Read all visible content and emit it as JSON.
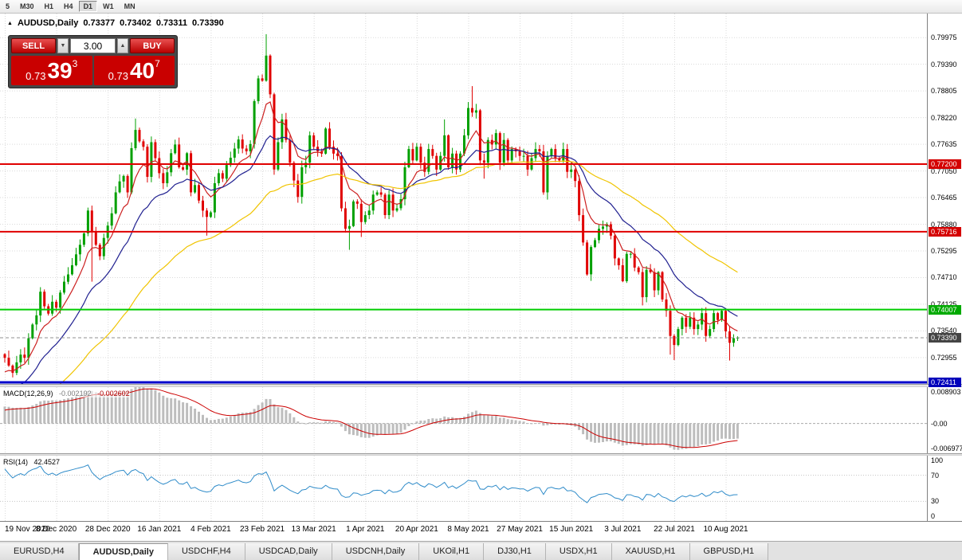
{
  "toolbar": {
    "timeframes": [
      {
        "label": "5"
      },
      {
        "label": "M30"
      },
      {
        "label": "H1"
      },
      {
        "label": "H4"
      },
      {
        "label": "D1",
        "active": true
      },
      {
        "label": "W1"
      },
      {
        "label": "MN"
      }
    ]
  },
  "chart_header": {
    "collapse_icon": "▲",
    "symbol": "AUDUSD,Daily",
    "open": "0.73377",
    "high": "0.73402",
    "low": "0.73311",
    "close": "0.73390"
  },
  "trade_panel": {
    "sell_label": "SELL",
    "buy_label": "BUY",
    "volume": "3.00",
    "volume_down_icon": "▼",
    "volume_up_icon": "▲",
    "sell_price": {
      "prefix": "0.73",
      "big": "39",
      "sup": "3"
    },
    "buy_price": {
      "prefix": "0.73",
      "big": "40",
      "sup": "7"
    }
  },
  "price_axis": {
    "ticks": [
      "0.79975",
      "0.79390",
      "0.78805",
      "0.78220",
      "0.77635",
      "0.77050",
      "0.76465",
      "0.75880",
      "0.75295",
      "0.74710",
      "0.74125",
      "0.73540",
      "0.72955"
    ],
    "lines": [
      {
        "label": "0.77200",
        "value": 0.772,
        "color": "#e00000",
        "badge_color": "#d40000",
        "thickness": 2
      },
      {
        "label": "0.75716",
        "value": 0.75716,
        "color": "#e00000",
        "badge_color": "#d40000",
        "thickness": 2
      },
      {
        "label": "0.74007",
        "value": 0.74007,
        "color": "#00cc00",
        "badge_color": "#00aa00",
        "thickness": 2
      },
      {
        "label": "0.72411",
        "value": 0.72411,
        "color": "#0000cc",
        "badge_color": "#0000bb",
        "thickness": 3
      }
    ],
    "current": {
      "label": "0.73390",
      "value": 0.7339,
      "color": "#444444"
    }
  },
  "macd_panel": {
    "label": "MACD(12,26,9)",
    "main_value": "-0.002192",
    "signal_value": "-0.002602",
    "axis": [
      {
        "label": "0.008903",
        "value": 0.008903
      },
      {
        "label": "-0.00",
        "value": 0
      },
      {
        "label": "-0.006977",
        "value": -0.006977
      }
    ]
  },
  "rsi_panel": {
    "label": "RSI(14)",
    "value": "42.4527",
    "axis": [
      {
        "label": "100",
        "value": 100
      },
      {
        "label": "70",
        "value": 70
      },
      {
        "label": "30",
        "value": 30
      },
      {
        "label": "0",
        "value": 0
      }
    ]
  },
  "date_axis": [
    {
      "label": "19 Nov 2020",
      "day": 0
    },
    {
      "label": "8 Dec 2020",
      "day": 13
    },
    {
      "label": "28 Dec 2020",
      "day": 26
    },
    {
      "label": "16 Jan 2021",
      "day": 39
    },
    {
      "label": "4 Feb 2021",
      "day": 52
    },
    {
      "label": "23 Feb 2021",
      "day": 65
    },
    {
      "label": "13 Mar 2021",
      "day": 78
    },
    {
      "label": "1 Apr 2021",
      "day": 91
    },
    {
      "label": "20 Apr 2021",
      "day": 104
    },
    {
      "label": "8 May 2021",
      "day": 117
    },
    {
      "label": "27 May 2021",
      "day": 130
    },
    {
      "label": "15 Jun 2021",
      "day": 143
    },
    {
      "label": "3 Jul 2021",
      "day": 156
    },
    {
      "label": "22 Jul 2021",
      "day": 169
    },
    {
      "label": "10 Aug 2021",
      "day": 182
    }
  ],
  "tabs": [
    {
      "label": "EURUSD,H4"
    },
    {
      "label": "AUDUSD,Daily",
      "active": true
    },
    {
      "label": "USDCHF,H4"
    },
    {
      "label": "USDCAD,Daily"
    },
    {
      "label": "USDCNH,Daily"
    },
    {
      "label": "UKOil,H1"
    },
    {
      "label": "DJ30,H1"
    },
    {
      "label": "USDX,H1"
    },
    {
      "label": "XAUUSD,H1"
    },
    {
      "label": "GBPUSD,H1"
    }
  ],
  "chart_data": {
    "type": "candlestick",
    "title": "AUDUSD,Daily",
    "timeframe": "D1",
    "ohlc_current": {
      "open": 0.73377,
      "high": 0.73402,
      "low": 0.73311,
      "close": 0.7339
    },
    "price_range": [
      0.72376,
      0.80503
    ],
    "macd_range": [
      -0.0078,
      0.0095
    ],
    "first_open": 0.7303,
    "colors": {
      "up": "#00a000",
      "down": "#e00000",
      "macd_histogram": "#bdbdbd",
      "macd_signal": "#cc0000",
      "rsi": "#2e8bc9",
      "grid": "#dadada",
      "background": "#ffffff"
    },
    "moving_averages": [
      {
        "name": "fast-ma",
        "type": "ema",
        "period": 8,
        "color": "#cc2020"
      },
      {
        "name": "medium-ma",
        "type": "ema",
        "period": 21,
        "color": "#202090"
      },
      {
        "name": "slow-ma",
        "type": "ema",
        "period": 55,
        "color": "#f0c400"
      }
    ],
    "indicators": {
      "macd": {
        "fast": 12,
        "slow": 26,
        "signal": 9,
        "main_value": -0.002192,
        "signal_value": -0.002602
      },
      "rsi": {
        "period": 14,
        "value": 42.4527
      }
    },
    "ma_seed": [
      0.7,
      0.701,
      0.7005,
      0.702,
      0.7035,
      0.7028,
      0.7045,
      0.706,
      0.7052,
      0.7068,
      0.708,
      0.7072,
      0.7088,
      0.71,
      0.7092,
      0.7105,
      0.7118,
      0.711,
      0.7125,
      0.7138,
      0.713,
      0.7142,
      0.7155,
      0.7148,
      0.716,
      0.7172,
      0.7165,
      0.7178,
      0.719,
      0.7182,
      0.716,
      0.714,
      0.712,
      0.71,
      0.7085,
      0.707,
      0.706,
      0.7075,
      0.709,
      0.7105,
      0.712,
      0.7135,
      0.715,
      0.714,
      0.7128,
      0.7115,
      0.713,
      0.7145,
      0.716,
      0.7175,
      0.719,
      0.7205,
      0.722,
      0.7235,
      0.725,
      0.7262,
      0.7255,
      0.7268,
      0.728,
      0.7292
    ],
    "closes": [
      0.7295,
      0.7278,
      0.7262,
      0.7285,
      0.7302,
      0.7295,
      0.7338,
      0.7368,
      0.7388,
      0.744,
      0.7408,
      0.7392,
      0.7418,
      0.7405,
      0.7438,
      0.7462,
      0.7478,
      0.7498,
      0.7522,
      0.7543,
      0.7568,
      0.7618,
      0.7572,
      0.7543,
      0.7518,
      0.7558,
      0.7585,
      0.7612,
      0.7658,
      0.7682,
      0.7694,
      0.7658,
      0.7755,
      0.7795,
      0.777,
      0.7758,
      0.7692,
      0.7768,
      0.7733,
      0.77,
      0.7678,
      0.7702,
      0.7744,
      0.7763,
      0.7713,
      0.7708,
      0.7744,
      0.7658,
      0.7674,
      0.764,
      0.7618,
      0.7604,
      0.7614,
      0.7678,
      0.77,
      0.7688,
      0.7718,
      0.7734,
      0.7754,
      0.7774,
      0.7754,
      0.7748,
      0.7764,
      0.7858,
      0.7908,
      0.7903,
      0.7958,
      0.7873,
      0.7708,
      0.7768,
      0.7818,
      0.7773,
      0.7723,
      0.7684,
      0.7648,
      0.7713,
      0.7723,
      0.7783,
      0.7758,
      0.7748,
      0.7743,
      0.7798,
      0.7758,
      0.7743,
      0.7738,
      0.7623,
      0.7578,
      0.7584,
      0.7638,
      0.7633,
      0.7593,
      0.7608,
      0.7618,
      0.7653,
      0.7658,
      0.7653,
      0.7608,
      0.7653,
      0.7618,
      0.7623,
      0.7643,
      0.7713,
      0.7753,
      0.7728,
      0.7758,
      0.7723,
      0.7703,
      0.7753,
      0.7738,
      0.7708,
      0.7738,
      0.7783,
      0.7713,
      0.7743,
      0.7708,
      0.7743,
      0.7783,
      0.7843,
      0.7833,
      0.7838,
      0.7728,
      0.7723,
      0.7773,
      0.7763,
      0.7788,
      0.7723,
      0.7773,
      0.7728,
      0.7753,
      0.7748,
      0.7738,
      0.7738,
      0.7708,
      0.7733,
      0.7753,
      0.7748,
      0.7658,
      0.7738,
      0.7753,
      0.7733,
      0.7728,
      0.7753,
      0.7703,
      0.7708,
      0.7683,
      0.7608,
      0.7548,
      0.7478,
      0.7538,
      0.7553,
      0.7578,
      0.7583,
      0.7588,
      0.7563,
      0.7513,
      0.7498,
      0.7463,
      0.7523,
      0.7523,
      0.7493,
      0.7483,
      0.7428,
      0.7488,
      0.7483,
      0.7443,
      0.7483,
      0.7423,
      0.7398,
      0.7343,
      0.7323,
      0.7358,
      0.7383,
      0.7363,
      0.7383,
      0.7358,
      0.7368,
      0.7393,
      0.7343,
      0.7358,
      0.7393,
      0.7378,
      0.7398,
      0.7353,
      0.7328,
      0.7338,
      0.7339
    ],
    "wick_overrides": {
      "2": {
        "l": 0.7252
      },
      "9": {
        "h": 0.745
      },
      "22": {
        "l": 0.7462
      },
      "33": {
        "h": 0.782
      },
      "51": {
        "l": 0.7563
      },
      "66": {
        "h": 0.8005
      },
      "87": {
        "l": 0.7532
      },
      "90": {
        "l": 0.756
      },
      "111": {
        "h": 0.7818
      },
      "118": {
        "h": 0.7891
      },
      "121": {
        "l": 0.7688
      },
      "147": {
        "l": 0.7475
      },
      "161": {
        "l": 0.741
      },
      "168": {
        "l": 0.7302
      },
      "169": {
        "l": 0.729
      },
      "183": {
        "l": 0.7289
      }
    }
  }
}
